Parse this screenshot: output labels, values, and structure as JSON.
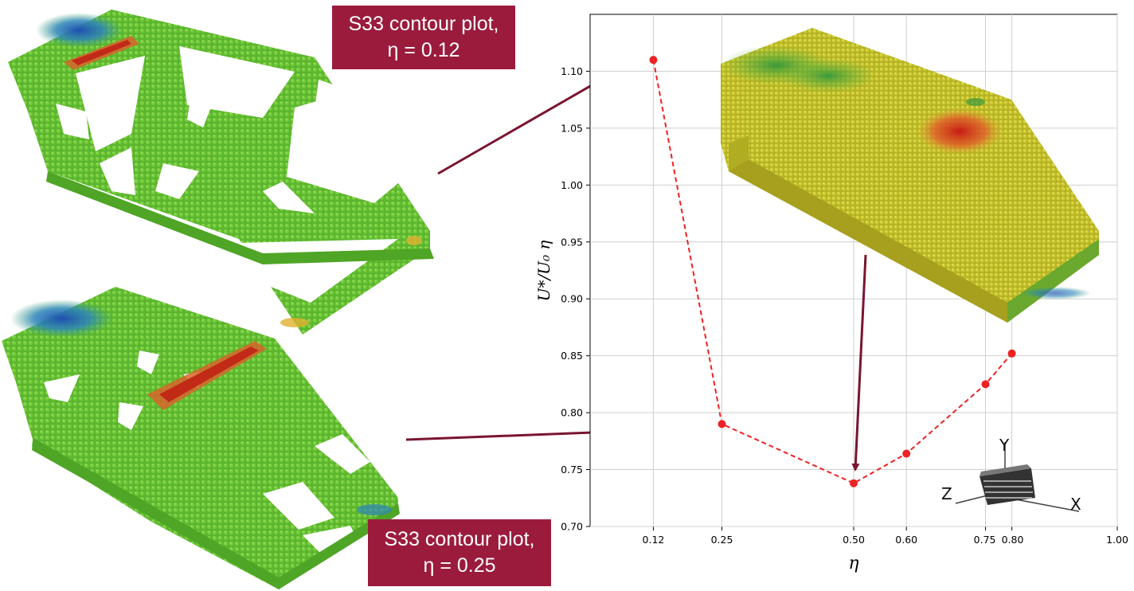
{
  "annotations": {
    "top": {
      "line1": "S33 contour plot,",
      "line2": "η = 0.12"
    },
    "bottom": {
      "line1": "S33 contour plot,",
      "line2": "η = 0.25"
    }
  },
  "axes_triad": {
    "x": "X",
    "y": "Y",
    "z": "Z"
  },
  "colors": {
    "series": "#ee2222",
    "arrow": "#7a1530",
    "label_bg": "#9b1b3d",
    "mesh_green": "#58b22d",
    "mesh_yellow": "#c9c12c",
    "stress_red": "#d33a1e",
    "stress_blue": "#2a5fb5"
  },
  "chart_data": {
    "type": "line",
    "title": "",
    "xlabel": "η",
    "ylabel": "U*/U₀ η",
    "xlim": [
      0.0,
      1.0
    ],
    "ylim": [
      0.7,
      1.15
    ],
    "xticks": [
      0.12,
      0.25,
      0.5,
      0.6,
      0.75,
      0.8,
      1.0
    ],
    "xtick_labels": [
      "0.12",
      "0.25",
      "0.50",
      "0.60",
      "0.75",
      "0.80",
      "1.00"
    ],
    "yticks": [
      0.7,
      0.75,
      0.8,
      0.85,
      0.9,
      0.95,
      1.0,
      1.05,
      1.1
    ],
    "ytick_labels": [
      "0.70",
      "0.75",
      "0.80",
      "0.85",
      "0.90",
      "0.95",
      "1.00",
      "1.05",
      "1.10"
    ],
    "grid": true,
    "series": [
      {
        "x": [
          0.12,
          0.25,
          0.5,
          0.6,
          0.75,
          0.8
        ],
        "y": [
          1.11,
          0.79,
          0.738,
          0.764,
          0.825,
          0.852
        ],
        "style": "dashed",
        "marker": "circle"
      }
    ]
  }
}
